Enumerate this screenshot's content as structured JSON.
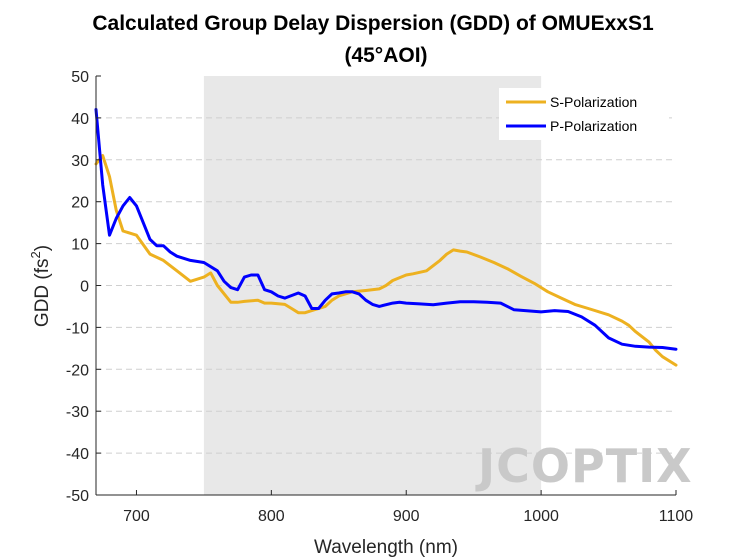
{
  "chart_data": {
    "type": "line",
    "title_line1": "Calculated Group Delay Dispersion (GDD) of OMUExxS1",
    "title_line2": "(45°AOI)",
    "xlabel": "Wavelength (nm)",
    "ylabel": "GDD (fs",
    "ylabel_sup": "2",
    "ylabel_close": ")",
    "xlim": [
      670,
      1100
    ],
    "ylim": [
      -50,
      50
    ],
    "xticks": [
      700,
      800,
      900,
      1000,
      1100
    ],
    "yticks": [
      -50,
      -40,
      -30,
      -20,
      -10,
      0,
      10,
      20,
      30,
      40,
      50
    ],
    "grid": "horizontal dashed",
    "legend_position": "top-right",
    "shaded_band": [
      750,
      1000
    ],
    "series": [
      {
        "name": "S-Polarization",
        "color": "#EDB120",
        "x": [
          670,
          675,
          680,
          685,
          690,
          695,
          700,
          710,
          720,
          730,
          740,
          745,
          750,
          755,
          760,
          770,
          775,
          780,
          790,
          795,
          800,
          810,
          815,
          820,
          825,
          830,
          840,
          845,
          850,
          860,
          870,
          880,
          885,
          890,
          900,
          905,
          915,
          925,
          930,
          935,
          940,
          945,
          955,
          965,
          975,
          985,
          995,
          1005,
          1015,
          1025,
          1035,
          1050,
          1060,
          1065,
          1070,
          1080,
          1085,
          1090,
          1100
        ],
        "values": [
          29,
          31,
          26,
          18,
          13,
          12.5,
          12,
          7.5,
          6,
          3.5,
          1,
          1.5,
          2,
          3,
          0,
          -4,
          -4,
          -3.8,
          -3.5,
          -4.2,
          -4.2,
          -4.5,
          -5.5,
          -6.5,
          -6.5,
          -6,
          -5,
          -3.5,
          -2.5,
          -1.5,
          -1.2,
          -0.8,
          0,
          1.2,
          2.5,
          2.8,
          3.5,
          6,
          7.5,
          8.5,
          8.2,
          8,
          6.8,
          5.5,
          4,
          2.2,
          0.5,
          -1.5,
          -3,
          -4.5,
          -5.5,
          -7,
          -8.5,
          -9.5,
          -11,
          -13.5,
          -15.5,
          -17,
          -19
        ]
      },
      {
        "name": "P-Polarization",
        "color": "#0000FF",
        "x": [
          670,
          675,
          680,
          685,
          690,
          695,
          700,
          710,
          715,
          720,
          725,
          730,
          740,
          750,
          760,
          765,
          770,
          775,
          780,
          785,
          790,
          795,
          800,
          805,
          810,
          820,
          825,
          830,
          835,
          840,
          845,
          850,
          855,
          860,
          865,
          870,
          875,
          880,
          890,
          895,
          900,
          910,
          920,
          930,
          940,
          950,
          960,
          970,
          980,
          1000,
          1010,
          1020,
          1030,
          1040,
          1050,
          1060,
          1070,
          1080,
          1090,
          1100
        ],
        "values": [
          42,
          24,
          12,
          16,
          19,
          21,
          19,
          11,
          9.5,
          9.5,
          8,
          7,
          6,
          5.5,
          3.5,
          1,
          -0.5,
          -1,
          2,
          2.5,
          2.5,
          -1,
          -1.5,
          -2.5,
          -3,
          -1.8,
          -2.5,
          -5.5,
          -5.5,
          -3.5,
          -2,
          -1.8,
          -1.5,
          -1.5,
          -2,
          -3.5,
          -4.5,
          -5,
          -4.2,
          -4,
          -4.2,
          -4.4,
          -4.6,
          -4.2,
          -3.9,
          -3.9,
          -4,
          -4.2,
          -5.8,
          -6.3,
          -6,
          -6.2,
          -7.5,
          -9.5,
          -12.5,
          -14,
          -14.5,
          -14.7,
          -14.8,
          -15.2
        ]
      }
    ]
  },
  "watermark": "JCOPTIX"
}
